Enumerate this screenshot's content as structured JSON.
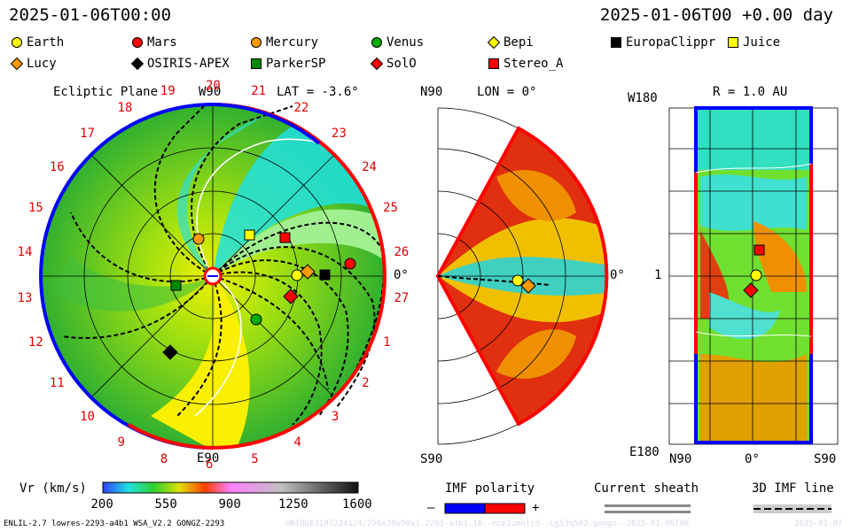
{
  "header": {
    "date": "2025-01-06T00:00",
    "date_right": "2025-01-06T00 +0.00 day"
  },
  "legend": [
    {
      "name": "Earth",
      "shape": "circle",
      "color": "#ffff00"
    },
    {
      "name": "Mars",
      "shape": "circle",
      "color": "#ff0000"
    },
    {
      "name": "Mercury",
      "shape": "circle",
      "color": "#ff9900"
    },
    {
      "name": "Venus",
      "shape": "circle",
      "color": "#00aa00"
    },
    {
      "name": "Bepi",
      "shape": "diamond",
      "color": "#ffff00"
    },
    {
      "name": "EuropaClippr",
      "shape": "square",
      "color": "#000000"
    },
    {
      "name": "Juice",
      "shape": "square",
      "color": "#ffff00"
    },
    {
      "name": "Lucy",
      "shape": "diamond",
      "color": "#ff9900"
    },
    {
      "name": "OSIRIS-APEX",
      "shape": "diamond",
      "color": "#000000"
    },
    {
      "name": "ParkerSP",
      "shape": "square",
      "color": "#008800"
    },
    {
      "name": "SolO",
      "shape": "diamond",
      "color": "#ff0000"
    },
    {
      "name": "Stereo_A",
      "shape": "square",
      "color": "#ff0000"
    }
  ],
  "panel1": {
    "title": "Ecliptic Plane",
    "lat": "LAT = -3.6°",
    "top": "W90",
    "bottom": "E90",
    "right": "0°",
    "carrington": [
      "20",
      "21",
      "22",
      "23",
      "24",
      "25",
      "26",
      "27",
      "1",
      "2",
      "3",
      "4",
      "5",
      "6",
      "8",
      "9",
      "10",
      "11",
      "12",
      "13",
      "14",
      "15",
      "16",
      "17",
      "18",
      "19"
    ]
  },
  "panel2": {
    "lon": "LON = 0°",
    "top": "N90",
    "bottom": "S90",
    "right": "0°"
  },
  "panel3": {
    "r": "R = 1.0 AU",
    "top_left": "W180",
    "bottom_left": "E180",
    "mid_left": "1",
    "b_left": "N90",
    "b_mid": "0°",
    "b_right": "S90"
  },
  "colorbar": {
    "label": "Vr (km/s)",
    "ticks": [
      "200",
      "550",
      "900",
      "1250",
      "1600"
    ]
  },
  "imf": {
    "label": "IMF polarity",
    "minus": "–",
    "plus": "+",
    "neg_color": "#0000ff",
    "pos_color": "#ff0000"
  },
  "sheath": {
    "label": "Current sheath"
  },
  "imf3d": {
    "label": "3D IMF line"
  },
  "footer": {
    "model": "ENLIL-2.7 lowres-2293-a4b1 WSA_V2.2 GONGZ-2293",
    "run": "UNIQUE3107224124/256x30x90x1.2293-a4b1.16--ncp1umnlcd--Lg53q5d2.gongz--2025-01-06T00",
    "stamp": "2025-01-07"
  },
  "colors": {
    "accent_neg": "#0000ff",
    "accent_pos": "#ff0000"
  }
}
